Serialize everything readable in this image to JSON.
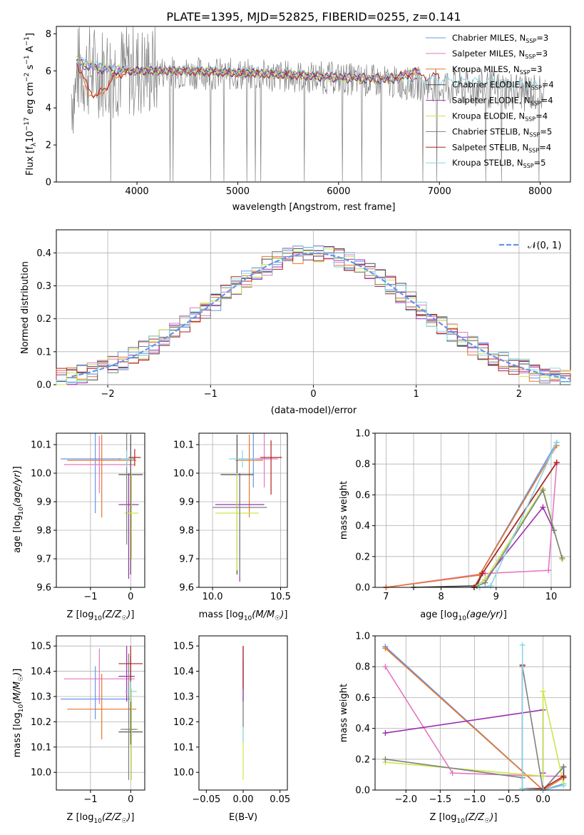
{
  "chart_data": [
    {
      "type": "line",
      "panel": "spectrum",
      "title": "PLATE=1395, MJD=52825, FIBERID=0255, z=0.141",
      "xlabel": "wavelength [Angstrom, rest frame]",
      "ylabel": "Flux [f_λ 10^-17 erg cm^-2 s^-1 A^-1]",
      "xlim": [
        3200,
        8300
      ],
      "ylim": [
        0,
        8.4
      ],
      "xticks": [
        "4000",
        "5000",
        "6000",
        "7000",
        "8000"
      ],
      "yticks": [
        "0",
        "2",
        "4",
        "6",
        "8"
      ],
      "legend_position": "upper right",
      "series": [
        {
          "name": "Chabrier MILES, N_SSP=3",
          "color": "#6495ED",
          "x": [
            3400,
            3600,
            3800,
            4000,
            4500,
            5000,
            5500,
            6000,
            6500,
            6800
          ],
          "y": [
            6.5,
            6.2,
            6.1,
            6.0,
            6.0,
            5.9,
            5.8,
            5.7,
            5.6,
            6.0
          ]
        },
        {
          "name": "Salpeter MILES, N_SSP=3",
          "color": "#E377C2",
          "x": [
            3400,
            3600,
            3800,
            4000,
            4500,
            5000,
            5500,
            6000,
            6500,
            6800
          ],
          "y": [
            6.6,
            6.2,
            6.1,
            6.0,
            6.0,
            5.9,
            5.8,
            5.7,
            5.6,
            6.0
          ]
        },
        {
          "name": "Kroupa MILES, N_SSP=3",
          "color": "#E8762B",
          "x": [
            3400,
            3500,
            3600,
            3800,
            4000,
            4500,
            5000,
            5500,
            6000,
            6500,
            6800
          ],
          "y": [
            6.5,
            5.0,
            4.5,
            5.8,
            6.0,
            6.0,
            5.9,
            5.8,
            5.7,
            5.6,
            6.0
          ]
        },
        {
          "name": "Chabrier ELODIE, N_SSP=4",
          "color": "#4A4A4A",
          "x": [
            3400,
            3600,
            3800,
            4000,
            4500,
            5000,
            5500,
            6000,
            6500,
            6800
          ],
          "y": [
            6.5,
            6.1,
            6.0,
            6.0,
            6.0,
            5.9,
            5.8,
            5.6,
            5.5,
            6.0
          ]
        },
        {
          "name": "Salpeter ELODIE, N_SSP=4",
          "color": "#9B30B0",
          "x": [
            3400,
            3600,
            3800,
            4000,
            4500,
            5000,
            5500,
            6000,
            6500,
            6800
          ],
          "y": [
            6.4,
            6.1,
            6.0,
            6.0,
            6.0,
            5.9,
            5.8,
            5.6,
            5.5,
            6.0
          ]
        },
        {
          "name": "Kroupa ELODIE, N_SSP=4",
          "color": "#C9E84A",
          "x": [
            3400,
            3600,
            3800,
            4000,
            4500,
            5000,
            5500,
            6000,
            6500,
            6800
          ],
          "y": [
            6.6,
            6.2,
            6.1,
            6.0,
            6.0,
            5.9,
            5.8,
            5.6,
            5.5,
            6.0
          ]
        },
        {
          "name": "Chabrier STELIB, N_SSP=5",
          "color": "#808080",
          "x": [
            3400,
            4000,
            5000,
            6000,
            7000,
            8000
          ],
          "y": [
            6.0,
            6.0,
            5.8,
            5.6,
            5.2,
            4.8
          ]
        },
        {
          "name": "Salpeter STELIB, N_SSP=4",
          "color": "#B22222",
          "x": [
            3400,
            3500,
            3600,
            3800,
            4000,
            4500,
            5000,
            5500,
            6000,
            6500,
            7000
          ],
          "y": [
            6.5,
            5.2,
            4.6,
            5.8,
            6.0,
            6.0,
            5.9,
            5.8,
            5.7,
            5.6,
            5.7
          ]
        },
        {
          "name": "Kroupa STELIB, N_SSP=5",
          "color": "#87D5E6",
          "x": [
            3400,
            3600,
            3800,
            4000,
            4500,
            5000,
            5500,
            6000,
            6500,
            7000,
            7500,
            8000
          ],
          "y": [
            6.6,
            6.3,
            6.1,
            6.0,
            6.1,
            6.0,
            5.9,
            5.7,
            5.6,
            5.5,
            5.4,
            5.2
          ]
        }
      ]
    },
    {
      "type": "histogram",
      "panel": "residuals",
      "xlabel": "(data-model)/error",
      "ylabel": "Normed distribution",
      "xlim": [
        -2.5,
        2.5
      ],
      "ylim": [
        0,
        0.47
      ],
      "xticks": [
        "−2",
        "−1",
        "0",
        "1",
        "2"
      ],
      "yticks": [
        "0.0",
        "0.1",
        "0.2",
        "0.3",
        "0.4"
      ],
      "legend": [
        {
          "label": "𝒩(0, 1)",
          "color": "#6495ED",
          "style": "dashed"
        }
      ],
      "gaussian": {
        "mu": 0,
        "sigma": 1
      },
      "bin_edges_start": -2.5,
      "bin_width": 0.1
    },
    {
      "type": "scatter",
      "panel": "age-vs-Z",
      "xlabel": "Z [log10(Z/Z☉)]",
      "ylabel": "age [log10(age/yr)]",
      "xlim": [
        -1.85,
        0.35
      ],
      "ylim": [
        9.6,
        10.14
      ],
      "xticks": [
        "−1",
        "0"
      ],
      "yticks": [
        "9.6",
        "9.7",
        "9.8",
        "9.9",
        "10.0",
        "10.1"
      ],
      "points": [
        {
          "color": "#6495ED",
          "x": -0.88,
          "y": 10.05,
          "xerr": 0.86,
          "yerr": [
            0.19,
            0.09
          ]
        },
        {
          "color": "#E377C2",
          "x": -0.78,
          "y": 10.03,
          "xerr": 0.88,
          "yerr": [
            0.1,
            0.1
          ]
        },
        {
          "color": "#E8762B",
          "x": -0.72,
          "y": 10.045,
          "xerr": 0.86,
          "yerr": [
            0.2,
            0.09
          ]
        },
        {
          "color": "#4A4A4A",
          "x": 0.0,
          "y": 9.995,
          "xerr": 0.3,
          "yerr": [
            0.35,
            0.14
          ]
        },
        {
          "color": "#9B30B0",
          "x": -0.05,
          "y": 9.89,
          "xerr": 0.25,
          "yerr": [
            0.26,
            0.11
          ]
        },
        {
          "color": "#C9E84A",
          "x": 0.02,
          "y": 9.86,
          "xerr": 0.18,
          "yerr": [
            0.16,
            0.14
          ]
        },
        {
          "color": "#808080",
          "x": -0.1,
          "y": 10.05,
          "xerr": 0.2,
          "yerr": [
            0.3,
            0.09
          ]
        },
        {
          "color": "#B22222",
          "x": 0.1,
          "y": 10.055,
          "xerr": 0.15,
          "yerr": [
            0.03,
            0.03
          ]
        },
        {
          "color": "#87D5E6",
          "x": -0.1,
          "y": 10.05,
          "xerr": 0.15,
          "yerr": [
            0.03,
            0.03
          ]
        }
      ]
    },
    {
      "type": "scatter",
      "panel": "age-vs-mass",
      "xlabel": "mass [log10(M/M☉)]",
      "ylabel": "",
      "xlim": [
        9.9,
        10.55
      ],
      "ylim": [
        9.6,
        10.14
      ],
      "xticks": [
        "10.0",
        "10.5"
      ],
      "yticks": [
        "9.6",
        "9.7",
        "9.8",
        "9.9",
        "10.0",
        "10.1"
      ],
      "points": [
        {
          "color": "#6495ED",
          "x": 10.3,
          "y": 10.05,
          "xerr": 0.12,
          "yerr": [
            0.1,
            0.09
          ]
        },
        {
          "color": "#E377C2",
          "x": 10.38,
          "y": 10.05,
          "xerr": 0.1,
          "yerr": [
            0.1,
            0.09
          ]
        },
        {
          "color": "#E8762B",
          "x": 10.27,
          "y": 10.045,
          "xerr": 0.1,
          "yerr": [
            0.2,
            0.09
          ]
        },
        {
          "color": "#4A4A4A",
          "x": 10.18,
          "y": 9.995,
          "xerr": 0.12,
          "yerr": [
            0.35,
            0.14
          ]
        },
        {
          "color": "#9B30B0",
          "x": 10.2,
          "y": 9.89,
          "xerr": 0.18,
          "yerr": [
            0.27,
            0.11
          ]
        },
        {
          "color": "#C9E84A",
          "x": 10.18,
          "y": 9.86,
          "xerr": 0.16,
          "yerr": [
            0.2,
            0.14
          ]
        },
        {
          "color": "#808080",
          "x": 10.2,
          "y": 9.88,
          "xerr": 0.2,
          "yerr": [
            0.24,
            0.11
          ]
        },
        {
          "color": "#B22222",
          "x": 10.43,
          "y": 10.055,
          "xerr": 0.08,
          "yerr": [
            0.13,
            0.06
          ]
        },
        {
          "color": "#87D5E6",
          "x": 10.22,
          "y": 10.05,
          "xerr": 0.1,
          "yerr": [
            0.03,
            0.03
          ]
        }
      ]
    },
    {
      "type": "line",
      "panel": "weight-vs-age",
      "xlabel": "age [log10(age/yr)]",
      "ylabel": "mass weight",
      "xlim": [
        6.8,
        10.35
      ],
      "ylim": [
        0,
        1.0
      ],
      "xticks": [
        "7",
        "8",
        "9",
        "10"
      ],
      "yticks": [
        "0.0",
        "0.2",
        "0.4",
        "0.6",
        "0.8",
        "1.0"
      ],
      "series": [
        {
          "color": "#6495ED",
          "x": [
            7.0,
            8.7,
            10.1
          ],
          "y": [
            0.0,
            0.08,
            0.94
          ]
        },
        {
          "color": "#E377C2",
          "x": [
            7.0,
            8.8,
            9.95,
            10.1
          ],
          "y": [
            0.0,
            0.09,
            0.11,
            0.8
          ]
        },
        {
          "color": "#E8762B",
          "x": [
            7.0,
            8.7,
            10.1
          ],
          "y": [
            0.0,
            0.08,
            0.92
          ]
        },
        {
          "color": "#4A4A4A",
          "x": [
            7.5,
            8.65,
            8.75,
            10.1
          ],
          "y": [
            0.0,
            0.01,
            0.09,
            0.81
          ]
        },
        {
          "color": "#9B30B0",
          "x": [
            8.6,
            8.8,
            9.85,
            10.05
          ],
          "y": [
            0.0,
            0.05,
            0.52,
            0.37
          ]
        },
        {
          "color": "#C9E84A",
          "x": [
            8.6,
            8.8,
            9.85,
            10.2
          ],
          "y": [
            0.0,
            0.05,
            0.64,
            0.18
          ]
        },
        {
          "color": "#808080",
          "x": [
            8.6,
            8.8,
            9.85,
            10.05,
            10.2
          ],
          "y": [
            0.0,
            0.03,
            0.63,
            0.37,
            0.19
          ]
        },
        {
          "color": "#B22222",
          "x": [
            8.6,
            8.75,
            10.1
          ],
          "y": [
            0.0,
            0.09,
            0.81
          ]
        },
        {
          "color": "#87D5E6",
          "x": [
            8.7,
            8.9,
            10.1
          ],
          "y": [
            0.0,
            0.01,
            0.94
          ]
        }
      ]
    },
    {
      "type": "scatter",
      "panel": "mass-vs-Z",
      "xlabel": "Z [log10(Z/Z☉)]",
      "ylabel": "mass [log10(M/M☉)]",
      "xlim": [
        -1.85,
        0.35
      ],
      "ylim": [
        9.93,
        10.54
      ],
      "xticks": [
        "−1",
        "0"
      ],
      "yticks": [
        "10.0",
        "10.1",
        "10.2",
        "10.3",
        "10.4",
        "10.5"
      ],
      "points": [
        {
          "color": "#6495ED",
          "x": -0.88,
          "y": 10.29,
          "xerr": 0.86,
          "yerr": [
            0.08,
            0.13
          ]
        },
        {
          "color": "#E377C2",
          "x": -0.78,
          "y": 10.37,
          "xerr": 0.88,
          "yerr": [
            0.1,
            0.12
          ]
        },
        {
          "color": "#E8762B",
          "x": -0.72,
          "y": 10.25,
          "xerr": 0.86,
          "yerr": [
            0.12,
            0.14
          ]
        },
        {
          "color": "#4A4A4A",
          "x": 0.0,
          "y": 10.16,
          "xerr": 0.3,
          "yerr": [
            0.05,
            0.3
          ]
        },
        {
          "color": "#9B30B0",
          "x": -0.1,
          "y": 10.38,
          "xerr": 0.2,
          "yerr": [
            0.1,
            0.12
          ]
        },
        {
          "color": "#C9E84A",
          "x": 0.02,
          "y": 10.17,
          "xerr": 0.18,
          "yerr": [
            0.2,
            0.16
          ]
        },
        {
          "color": "#808080",
          "x": -0.05,
          "y": 10.17,
          "xerr": 0.2,
          "yerr": [
            0.2,
            0.3
          ]
        },
        {
          "color": "#B22222",
          "x": 0.0,
          "y": 10.43,
          "xerr": 0.3,
          "yerr": [
            0.1,
            0.07
          ]
        },
        {
          "color": "#87D5E6",
          "x": 0.0,
          "y": 10.32,
          "xerr": 0.15,
          "yerr": [
            0.04,
            0.04
          ]
        }
      ]
    },
    {
      "type": "scatter",
      "panel": "mass-vs-EBV",
      "xlabel": "E(B-V)",
      "ylabel": "",
      "xlim": [
        -0.06,
        0.06
      ],
      "ylim": [
        9.93,
        10.54
      ],
      "xticks": [
        "−0.05",
        "0.00",
        "0.05"
      ],
      "yticks": [
        "10.0",
        "10.1",
        "10.2",
        "10.3",
        "10.4",
        "10.5"
      ],
      "points": [
        {
          "color": "#C9E84A",
          "x": 0.0,
          "y": 10.17,
          "xerr": 0,
          "yerr": [
            0.2,
            0.16
          ]
        },
        {
          "color": "#87D5E6",
          "x": 0.0,
          "y": 10.32,
          "xerr": 0,
          "yerr": [
            0.2,
            0.18
          ]
        },
        {
          "color": "#808080",
          "x": 0.0,
          "y": 10.3,
          "xerr": 0,
          "yerr": [
            0.12,
            0.15
          ]
        },
        {
          "color": "#9B30B0",
          "x": 0.0,
          "y": 10.38,
          "xerr": 0,
          "yerr": [
            0.1,
            0.12
          ]
        },
        {
          "color": "#B22222",
          "x": 0.0,
          "y": 10.43,
          "xerr": 0,
          "yerr": [
            0.1,
            0.07
          ]
        }
      ]
    },
    {
      "type": "line",
      "panel": "weight-vs-Z",
      "xlabel": "Z [log10(Z/Z☉)]",
      "ylabel": "mass weight",
      "xlim": [
        -2.45,
        0.4
      ],
      "ylim": [
        0,
        1.0
      ],
      "xticks": [
        "−2.0",
        "−1.5",
        "−1.0",
        "−0.5",
        "0.0"
      ],
      "yticks": [
        "0.0",
        "0.2",
        "0.4",
        "0.6",
        "0.8",
        "1.0"
      ],
      "series": [
        {
          "color": "#6495ED",
          "x": [
            -2.3,
            0.0,
            0.3
          ],
          "y": [
            0.93,
            0.0,
            0.04
          ]
        },
        {
          "color": "#E377C2",
          "x": [
            -2.3,
            -1.32,
            0.0,
            0.3
          ],
          "y": [
            0.8,
            0.11,
            0.09,
            0.09
          ]
        },
        {
          "color": "#E8762B",
          "x": [
            -2.3,
            0.0,
            0.3
          ],
          "y": [
            0.92,
            0.0,
            0.08
          ]
        },
        {
          "color": "#4A4A4A",
          "x": [
            -0.3,
            -0.3,
            0.0,
            0.3,
            0.3
          ],
          "y": [
            0.81,
            0.01,
            0.0,
            0.15,
            0.08
          ]
        },
        {
          "color": "#9B30B0",
          "x": [
            -2.3,
            0.0,
            0.0
          ],
          "y": [
            0.37,
            0.52,
            0.11
          ]
        },
        {
          "color": "#C9E84A",
          "x": [
            -2.3,
            0.0,
            0.0,
            0.3
          ],
          "y": [
            0.18,
            0.09,
            0.64,
            0.04
          ]
        },
        {
          "color": "#808080",
          "x": [
            -2.3,
            -0.3,
            -0.3,
            0.0,
            0.3
          ],
          "y": [
            0.2,
            0.08,
            0.8,
            0.0,
            0.15
          ]
        },
        {
          "color": "#B22222",
          "x": [
            -0.3,
            -0.3,
            0.0,
            0.3
          ],
          "y": [
            0.81,
            0.01,
            0.01,
            0.09
          ]
        },
        {
          "color": "#87D5E6",
          "x": [
            -0.3,
            -0.3,
            0.0,
            0.3
          ],
          "y": [
            0.94,
            0.01,
            0.0,
            0.03
          ]
        }
      ]
    }
  ],
  "labels": {
    "title": "PLATE=1395, MJD=52825, FIBERID=0255, z=0.141",
    "spec_xlabel": "wavelength [Angstrom, rest frame]",
    "spec_ylabel": "Flux [f",
    "hist_xlabel": "(data-model)/error",
    "hist_ylabel": "Normed distribution",
    "age_ylabel": "age  [log",
    "z_xlabel": "Z [log",
    "mass_xlabel": "mass [log",
    "mass_ylabel": "mass [log",
    "ebv_xlabel": "E(B-V)",
    "mw_ylabel": "mass weight",
    "age_xlabel": "age  [log"
  }
}
